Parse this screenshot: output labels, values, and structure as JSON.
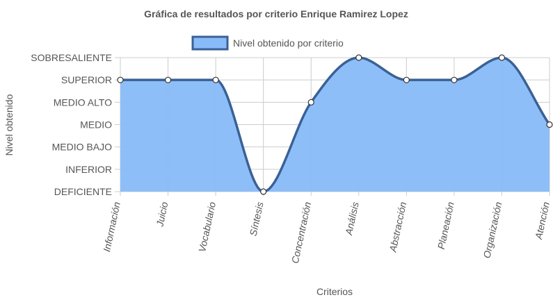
{
  "chart_data": {
    "type": "area",
    "title": "Gráfica de resultados por criterio Enrique Ramirez Lopez",
    "xlabel": "Criterios",
    "ylabel": "Nivel obtenido",
    "categories": [
      "Información",
      "Juicio",
      "Vocabulario",
      "Síntesis",
      "Concentración",
      "Análisis",
      "Abstracción",
      "Planeación",
      "Organización",
      "Atención"
    ],
    "levels": [
      "DEFICIENTE",
      "INFERIOR",
      "MEDIO BAJO",
      "MEDIO",
      "MEDIO ALTO",
      "SUPERIOR",
      "SOBRESALIENTE"
    ],
    "series": [
      {
        "name": "Nivel obtenido por criterio",
        "values": [
          5,
          5,
          5,
          0,
          4,
          6,
          5,
          5,
          6,
          3
        ]
      }
    ],
    "ylim": [
      0,
      6
    ],
    "grid": true,
    "legend": "top",
    "colors": {
      "fill": "#88bbf8",
      "line": "#3a6195",
      "point_fill": "#ffffff",
      "point_stroke": "#333333",
      "grid": "#cccccc",
      "text": "#555555"
    }
  }
}
